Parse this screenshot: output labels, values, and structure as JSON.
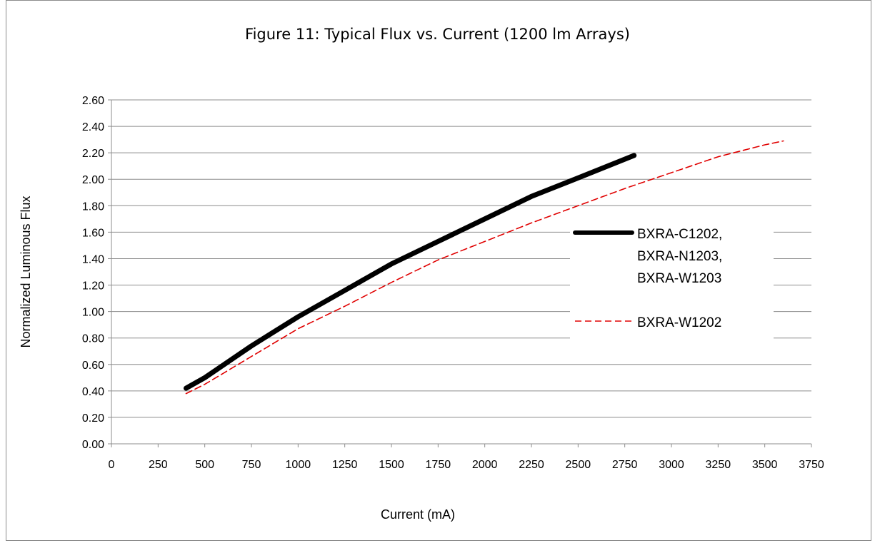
{
  "chart_data": {
    "type": "line",
    "title": "Figure 11:  Typical Flux vs. Current (1200 lm Arrays)",
    "xlabel": "Current (mA)",
    "ylabel": "Normalized Luminous Flux",
    "xlim": [
      0,
      3750
    ],
    "ylim": [
      0,
      2.6
    ],
    "xticks": [
      "0",
      "250",
      "500",
      "750",
      "1000",
      "1250",
      "1500",
      "1750",
      "2000",
      "2250",
      "2500",
      "2750",
      "3000",
      "3250",
      "3500",
      "3750"
    ],
    "yticks": [
      "0.00",
      "0.20",
      "0.40",
      "0.60",
      "0.80",
      "1.00",
      "1.20",
      "1.40",
      "1.60",
      "1.80",
      "2.00",
      "2.20",
      "2.40",
      "2.60"
    ],
    "grid": "horizontal",
    "legend_position": "right",
    "series": [
      {
        "name_lines": [
          "BXRA-C1202,",
          "BXRA-N1203,",
          "BXRA-W1203"
        ],
        "color": "#000000",
        "style": "solid-thick",
        "x": [
          400,
          500,
          750,
          1000,
          1250,
          1500,
          1750,
          2000,
          2250,
          2500,
          2800
        ],
        "y": [
          0.42,
          0.5,
          0.74,
          0.96,
          1.16,
          1.36,
          1.53,
          1.7,
          1.87,
          2.01,
          2.18
        ]
      },
      {
        "name_lines": [
          "BXRA-W1202"
        ],
        "color": "#e00000",
        "style": "dashed",
        "x": [
          400,
          500,
          750,
          1000,
          1250,
          1500,
          1750,
          2000,
          2250,
          2500,
          2750,
          3000,
          3250,
          3500,
          3600
        ],
        "y": [
          0.38,
          0.45,
          0.66,
          0.87,
          1.04,
          1.22,
          1.39,
          1.53,
          1.67,
          1.8,
          1.93,
          2.05,
          2.17,
          2.26,
          2.29
        ]
      }
    ]
  }
}
